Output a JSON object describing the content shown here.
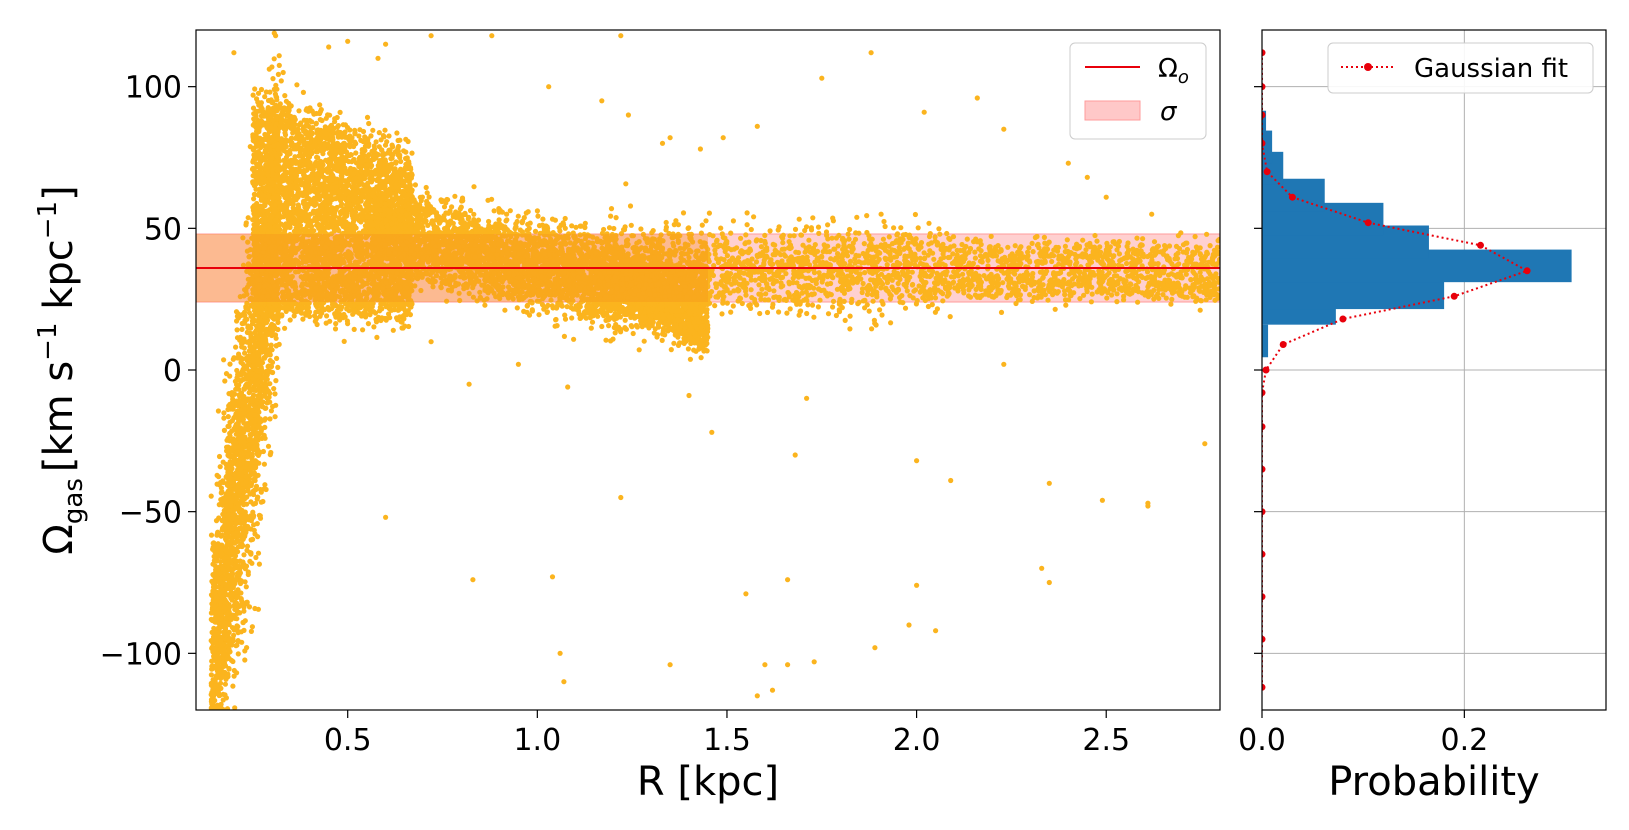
{
  "chart_data": [
    {
      "type": "scatter",
      "xlabel": "R [kpc]",
      "ylabel_main": "Ω",
      "ylabel_sub": "gas",
      "ylabel_units": "[km s",
      "ylabel_exp1": "−1",
      "ylabel_mid": " kpc",
      "ylabel_exp2": "−1",
      "ylabel_end": "]",
      "xlim": [
        0.1,
        2.8
      ],
      "ylim": [
        -120,
        120
      ],
      "x_ticks": [
        0.5,
        1.0,
        1.5,
        2.0,
        2.5
      ],
      "x_tick_labels": [
        "0.5",
        "1.0",
        "1.5",
        "2.0",
        "2.5"
      ],
      "y_ticks": [
        100,
        50,
        0,
        -50,
        -100
      ],
      "y_tick_labels": [
        "100",
        "50",
        "0",
        "−50",
        "−100"
      ],
      "omega_o": 36,
      "sigma_band": [
        24,
        48
      ],
      "point_color": "#fbb41e",
      "overlap_color": "#f7931e",
      "line_color": "#e8000b",
      "band_color": "#ffc8c8",
      "grid": false,
      "legend": {
        "position": "top-right",
        "entries": [
          {
            "label": "Ω",
            "sub": "o",
            "type": "line"
          },
          {
            "label": "σ",
            "type": "band"
          }
        ]
      },
      "outliers": [
        [
          0.2,
          112
        ],
        [
          0.31,
          118
        ],
        [
          0.33,
          105
        ],
        [
          0.45,
          114
        ],
        [
          0.5,
          116
        ],
        [
          0.58,
          110
        ],
        [
          0.6,
          115
        ],
        [
          0.72,
          118
        ],
        [
          0.88,
          118
        ],
        [
          1.22,
          118
        ],
        [
          1.03,
          100
        ],
        [
          1.17,
          95
        ],
        [
          1.24,
          90
        ],
        [
          1.33,
          80
        ],
        [
          1.35,
          82
        ],
        [
          1.43,
          78
        ],
        [
          1.49,
          82
        ],
        [
          1.58,
          86
        ],
        [
          1.75,
          103
        ],
        [
          1.88,
          112
        ],
        [
          2.02,
          91
        ],
        [
          2.16,
          96
        ],
        [
          2.23,
          85
        ],
        [
          2.4,
          73
        ],
        [
          2.45,
          68
        ],
        [
          2.5,
          61
        ],
        [
          2.62,
          55
        ],
        [
          0.72,
          10
        ],
        [
          0.82,
          -5
        ],
        [
          0.95,
          2
        ],
        [
          1.08,
          -6
        ],
        [
          1.4,
          -9
        ],
        [
          1.46,
          -22
        ],
        [
          1.68,
          -30
        ],
        [
          1.71,
          -10
        ],
        [
          2.23,
          2
        ],
        [
          2.0,
          -32
        ],
        [
          2.09,
          -39
        ],
        [
          2.35,
          -40
        ],
        [
          2.49,
          -46
        ],
        [
          2.61,
          -48
        ],
        [
          2.76,
          -26
        ],
        [
          0.6,
          -52
        ],
        [
          1.04,
          -73
        ],
        [
          0.83,
          -74
        ],
        [
          1.22,
          -45
        ],
        [
          1.66,
          -74
        ],
        [
          1.55,
          -79
        ],
        [
          1.66,
          -104
        ],
        [
          1.73,
          -103
        ],
        [
          1.89,
          -98
        ],
        [
          2.0,
          -76
        ],
        [
          2.05,
          -92
        ],
        [
          1.98,
          -90
        ],
        [
          2.33,
          -70
        ],
        [
          2.35,
          -75
        ],
        [
          2.61,
          -47
        ],
        [
          1.06,
          -100
        ],
        [
          1.07,
          -110
        ],
        [
          1.35,
          -104
        ],
        [
          1.6,
          -104
        ],
        [
          1.58,
          -115
        ],
        [
          1.62,
          -113
        ]
      ]
    },
    {
      "type": "bar",
      "orientation": "horizontal",
      "xlabel": "Probability",
      "xlim": [
        0,
        0.34
      ],
      "ylim": [
        -120,
        120
      ],
      "x_ticks": [
        0.0,
        0.2
      ],
      "x_tick_labels": [
        "0.0",
        "0.2"
      ],
      "y_ticks": [
        100,
        50,
        0,
        -50,
        -100
      ],
      "grid": true,
      "bar_color": "#1f77b4",
      "bin_width": 11.5,
      "bins": [
        {
          "y_start": 4.5,
          "value": 0.006
        },
        {
          "y_start": 16,
          "value": 0.073
        },
        {
          "y_start": 21.5,
          "value": 0.18
        },
        {
          "y_start": 31,
          "value": 0.306
        },
        {
          "y_start": 39.5,
          "value": 0.165
        },
        {
          "y_start": 47.5,
          "value": 0.12
        },
        {
          "y_start": 56,
          "value": 0.062
        },
        {
          "y_start": 65.5,
          "value": 0.021
        },
        {
          "y_start": 73,
          "value": 0.01
        },
        {
          "y_start": 80,
          "value": 0.004
        }
      ],
      "fit_line_color": "#e8000b",
      "fit_points": [
        [
          0.0,
          -112
        ],
        [
          0.0,
          -95
        ],
        [
          0.0,
          -80
        ],
        [
          0.0,
          -65
        ],
        [
          0.0,
          -50
        ],
        [
          0.0,
          -35
        ],
        [
          0.0,
          -20
        ],
        [
          0.0,
          -8
        ],
        [
          0.004,
          0
        ],
        [
          0.021,
          9
        ],
        [
          0.08,
          18
        ],
        [
          0.19,
          26
        ],
        [
          0.262,
          35
        ],
        [
          0.216,
          44
        ],
        [
          0.105,
          52
        ],
        [
          0.03,
          61
        ],
        [
          0.005,
          70
        ],
        [
          0.0,
          80
        ],
        [
          0.0,
          90
        ],
        [
          0.0,
          100
        ],
        [
          0.0,
          112
        ]
      ],
      "legend": {
        "position": "top-right",
        "entries": [
          {
            "label": "Gaussian fit",
            "type": "dotted-line"
          }
        ]
      }
    }
  ]
}
